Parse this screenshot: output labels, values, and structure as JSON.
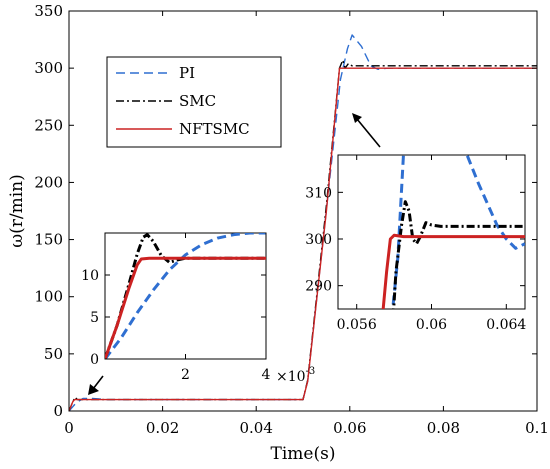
{
  "chart_data": {
    "type": "line",
    "xlabel": "Time(s)",
    "ylabel": "ω(r/min)",
    "xlim": [
      0,
      0.1
    ],
    "ylim": [
      0,
      350
    ],
    "xticks": [
      "0",
      "0.02",
      "0.04",
      "0.06",
      "0.08",
      "0.1"
    ],
    "yticks": [
      "0",
      "50",
      "100",
      "150",
      "200",
      "250",
      "300",
      "350"
    ],
    "legend": {
      "placement": "top-left",
      "entries": [
        "PI",
        "SMC",
        "NFTSMC"
      ]
    },
    "series": [
      {
        "name": "PI",
        "color": "#2f6fd1",
        "style": "dashed",
        "x": [
          0,
          0.0015,
          0.003,
          0.005,
          0.008,
          0.05,
          0.051,
          0.055,
          0.058,
          0.0595,
          0.0605,
          0.0625,
          0.0645,
          0.066,
          0.068,
          0.1
        ],
        "y": [
          0,
          7,
          11,
          11,
          10,
          10,
          26,
          176,
          290,
          317,
          329,
          319,
          302,
          299,
          300,
          300
        ]
      },
      {
        "name": "SMC",
        "color": "#000000",
        "style": "dashdot",
        "x": [
          0,
          0.0008,
          0.0013,
          0.0018,
          0.0025,
          0.005,
          0.05,
          0.051,
          0.055,
          0.0578,
          0.0585,
          0.059,
          0.0597,
          0.0605,
          0.1
        ],
        "y": [
          0,
          8,
          12,
          10,
          10,
          10,
          10,
          27,
          180,
          300,
          307,
          300,
          304,
          302,
          302
        ]
      },
      {
        "name": "NFTSMC",
        "color": "#cc2222",
        "style": "solid",
        "x": [
          0,
          0.0008,
          0.0012,
          0.005,
          0.05,
          0.051,
          0.055,
          0.0578,
          0.1
        ],
        "y": [
          0,
          8,
          10,
          10,
          10,
          26,
          175,
          300,
          300
        ]
      }
    ],
    "insets": [
      {
        "id": "inset-1",
        "xlim": [
          0,
          0.004
        ],
        "ylim": [
          0,
          15
        ],
        "xticks": [
          "2",
          "4"
        ],
        "yticks": [
          "0",
          "5",
          "10"
        ],
        "x_exponent_label": "×10",
        "x_exponent": "-3",
        "series": [
          {
            "name": "PI",
            "x": [
              0,
              0.0004,
              0.0008,
              0.0012,
              0.0016,
              0.002,
              0.0024,
              0.0028,
              0.0032,
              0.0036,
              0.004
            ],
            "y": [
              0,
              2.5,
              5.5,
              8.2,
              10.6,
              12.4,
              13.6,
              14.4,
              14.8,
              15,
              15
            ]
          },
          {
            "name": "SMC",
            "x": [
              0,
              0.0003,
              0.0006,
              0.0008,
              0.00095,
              0.00105,
              0.0012,
              0.0014,
              0.0016,
              0.0018,
              0.002,
              0.004
            ],
            "y": [
              0,
              4,
              9,
              12.5,
              14.5,
              14.8,
              14,
              12.3,
              11.5,
              11.8,
              12,
              12
            ]
          },
          {
            "name": "NFTSMC",
            "x": [
              0,
              0.0003,
              0.0006,
              0.0008,
              0.0009,
              0.0011,
              0.004
            ],
            "y": [
              0,
              4,
              8.5,
              11.2,
              11.9,
              12,
              12
            ]
          }
        ]
      },
      {
        "id": "inset-2",
        "xlim": [
          0.055,
          0.065
        ],
        "ylim": [
          285,
          318
        ],
        "xticks": [
          "0.056",
          "0.06",
          "0.064"
        ],
        "yticks": [
          "290",
          "300",
          "310"
        ],
        "series": [
          {
            "name": "PI",
            "x": [
              0.0578,
              0.0582,
              0.0585,
              0.0605,
              0.0615,
              0.0625,
              0.0635,
              0.064,
              0.0645,
              0.065
            ],
            "y": [
              280,
              296,
              318,
              330,
              322,
              312,
              303,
              300,
              298,
              299
            ]
          },
          {
            "name": "SMC",
            "x": [
              0.0579,
              0.0581,
              0.0584,
              0.0586,
              0.0588,
              0.059,
              0.0592,
              0.0594,
              0.0597,
              0.06,
              0.0605,
              0.065
            ],
            "y": [
              280,
              293,
              303,
              308,
              306,
              300,
              299,
              300.5,
              303.5,
              303,
              302.7,
              302.7
            ]
          },
          {
            "name": "NFTSMC",
            "x": [
              0.0573,
              0.0576,
              0.0578,
              0.058,
              0.0585,
              0.065
            ],
            "y": [
              280,
              293,
              300,
              300.8,
              300.5,
              300.5
            ]
          }
        ]
      }
    ]
  }
}
